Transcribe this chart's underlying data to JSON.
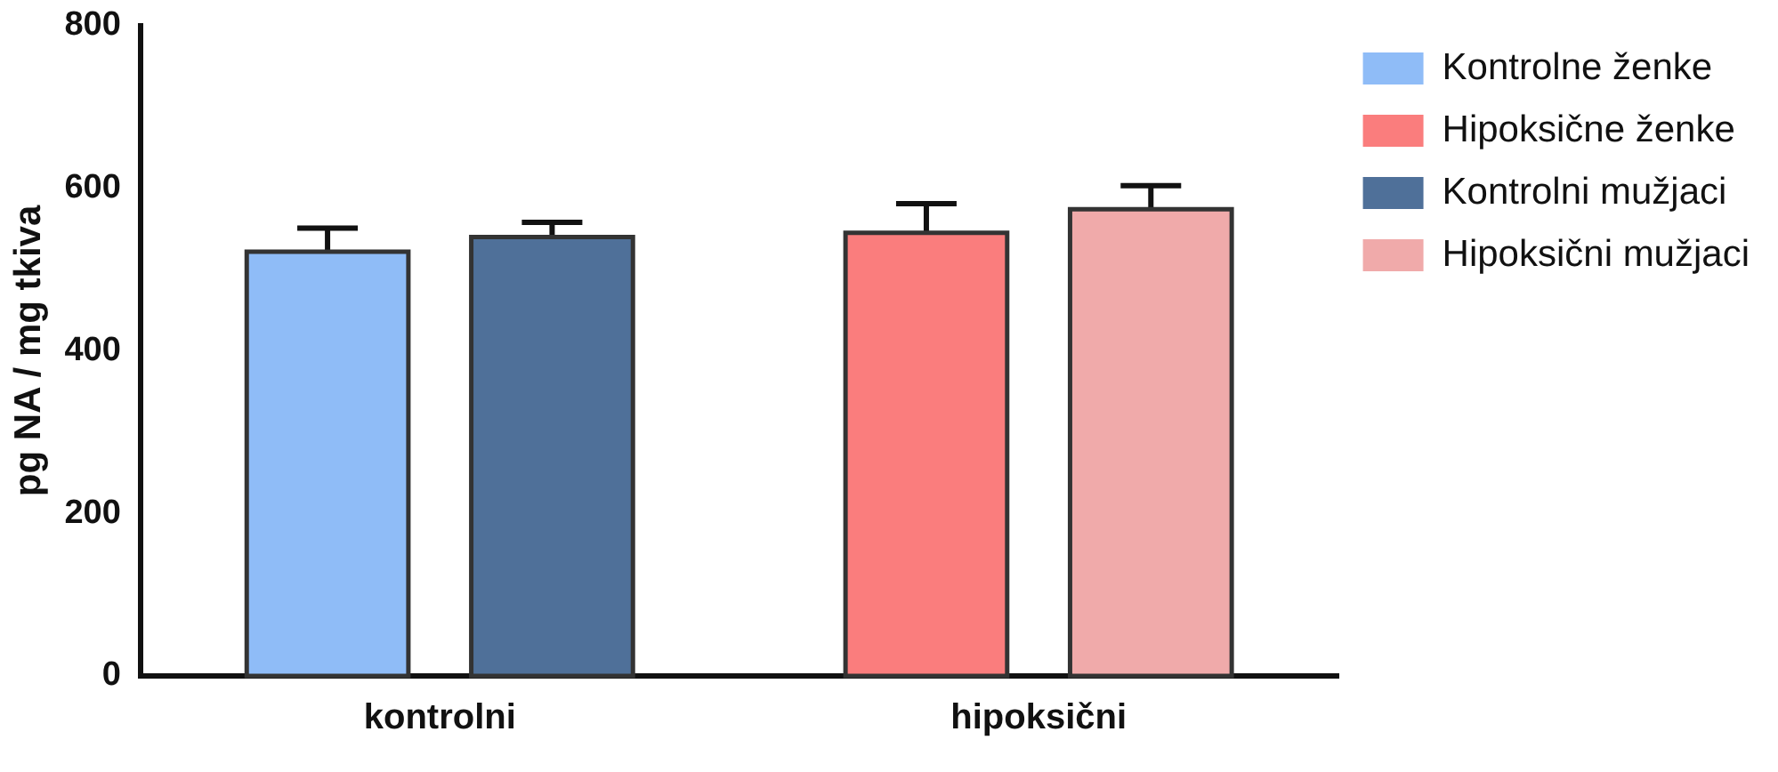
{
  "chart_data": {
    "type": "bar",
    "ylabel": "pg NA / mg tkiva",
    "categories": [
      "kontrolni",
      "hipoksični"
    ],
    "series": [
      {
        "name": "Kontrolne ženke",
        "color": "#8fbcf7",
        "values": [
          522,
          null
        ],
        "errors": [
          29,
          null
        ]
      },
      {
        "name": "Hipoksične ženke",
        "color": "#fa7d7d",
        "values": [
          null,
          545
        ],
        "errors": [
          null,
          36
        ]
      },
      {
        "name": "Kontrolni mužjaci",
        "color": "#4f7099",
        "values": [
          540,
          null
        ],
        "errors": [
          18,
          null
        ]
      },
      {
        "name": "Hipoksični mužjaci",
        "color": "#f0aaaa",
        "values": [
          null,
          574
        ],
        "errors": [
          null,
          29
        ]
      }
    ],
    "ylim": [
      0,
      800
    ],
    "yticks": [
      0,
      200,
      400,
      600,
      800
    ],
    "grid": false,
    "legend": "right"
  }
}
